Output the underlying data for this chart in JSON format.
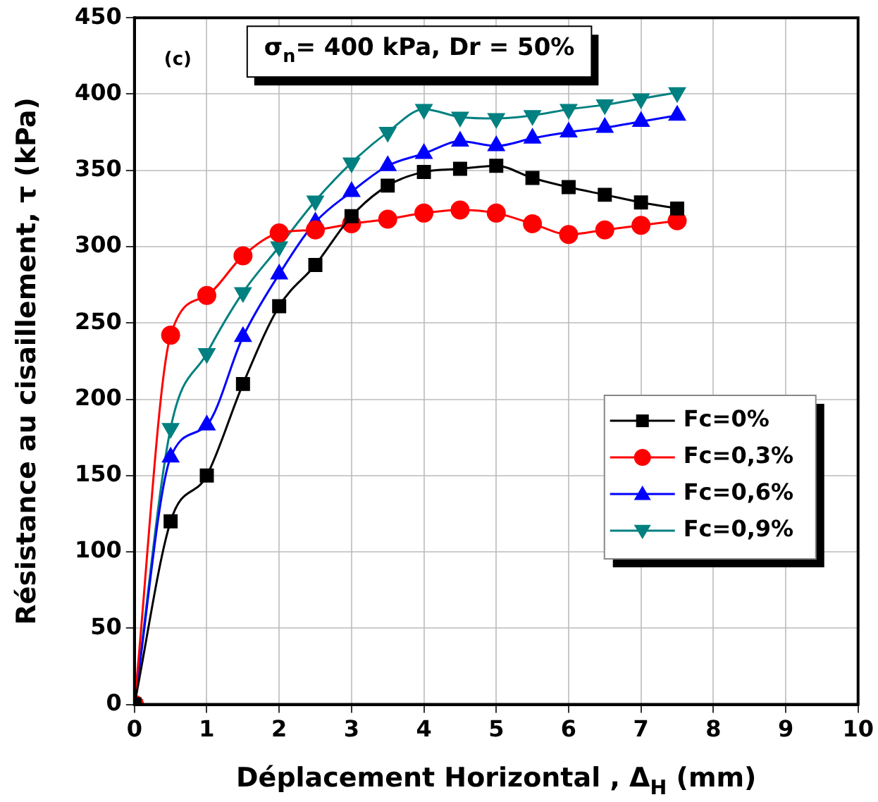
{
  "chart_data": {
    "type": "line",
    "xlabel": "Déplacement Horizontal , Δ$_{H}$ (mm)",
    "ylabel": "Résistance au cisaillement, τ (kPa)",
    "annotations": [
      "(c)",
      "σ$_{n}$= 400 kPa, Dr = 50%"
    ],
    "x": [
      0,
      0.5,
      1,
      1.5,
      2,
      2.5,
      3,
      3.5,
      4,
      4.5,
      5,
      5.5,
      6,
      6.5,
      7,
      7.5
    ],
    "series": [
      {
        "name": "Fc=0%",
        "color": "#000000",
        "marker": "square",
        "values": [
          0,
          120,
          150,
          210,
          261,
          288,
          320,
          340,
          349,
          351,
          353,
          345,
          339,
          334,
          329,
          325
        ]
      },
      {
        "name": "Fc=0,3%",
        "color": "#ff0000",
        "marker": "circle",
        "values": [
          0,
          242,
          268,
          294,
          309,
          311,
          315,
          318,
          322,
          324,
          322,
          315,
          308,
          311,
          314,
          317
        ]
      },
      {
        "name": "Fc=0,6%",
        "color": "#0000ff",
        "marker": "triangle",
        "values": [
          0,
          162,
          183,
          241,
          282,
          316,
          336,
          353,
          361,
          369,
          366,
          371,
          375,
          378,
          382,
          386
        ]
      },
      {
        "name": "Fc=0,9%",
        "color": "#008080",
        "marker": "triangle-down",
        "values": [
          0,
          181,
          230,
          270,
          300,
          330,
          355,
          375,
          390,
          385,
          384,
          386,
          390,
          393,
          397,
          401
        ]
      }
    ],
    "xlim": [
      0,
      10
    ],
    "xticks": [
      0,
      1,
      2,
      3,
      4,
      5,
      6,
      7,
      8,
      9,
      10
    ],
    "ylim": [
      0,
      450
    ],
    "yticks": [
      0,
      50,
      100,
      150,
      200,
      250,
      300,
      350,
      400,
      450
    ],
    "grid": true,
    "legend": "right",
    "line_style": "solid"
  }
}
